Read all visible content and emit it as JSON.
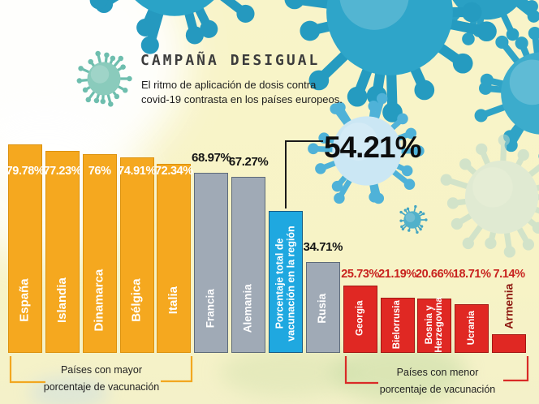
{
  "header": {
    "title": "CAMPAÑA DESIGUAL",
    "subtitle_line1": "El ritmo de aplicación de dosis contra",
    "subtitle_line2": "covid-19 contrasta en los países europeos."
  },
  "highlight": {
    "value": "54.21%"
  },
  "chart_data": {
    "type": "bar",
    "title": "CAMPAÑA DESIGUAL",
    "unit": "%",
    "ylim": [
      0,
      80
    ],
    "bars": [
      {
        "name": "España",
        "label": "79.78%",
        "value": 79.78,
        "group": "high"
      },
      {
        "name": "Islandia",
        "label": "77.23%",
        "value": 77.23,
        "group": "high"
      },
      {
        "name": "Dinamarca",
        "label": "76%",
        "value": 76.0,
        "group": "high"
      },
      {
        "name": "Bélgica",
        "label": "74.91%",
        "value": 74.91,
        "group": "high"
      },
      {
        "name": "Italia",
        "label": "72.34%",
        "value": 72.34,
        "group": "high"
      },
      {
        "name": "Francia",
        "label": "68.97%",
        "value": 68.97,
        "group": "mid"
      },
      {
        "name": "Alemania",
        "label": "67.27%",
        "value": 67.27,
        "group": "mid"
      },
      {
        "name": "Porcentaje total de\nvacunación en la región",
        "label": "54.21%",
        "value": 54.21,
        "group": "total"
      },
      {
        "name": "Rusia",
        "label": "34.71%",
        "value": 34.71,
        "group": "mid"
      },
      {
        "name": "Georgia",
        "label": "25.73%",
        "value": 25.73,
        "group": "low"
      },
      {
        "name": "Bielorrusia",
        "label": "21.19%",
        "value": 21.19,
        "group": "low"
      },
      {
        "name": "Bosnia y\nHerzegovina",
        "label": "20.66%",
        "value": 20.66,
        "group": "low"
      },
      {
        "name": "Ucrania",
        "label": "18.71%",
        "value": 18.71,
        "group": "low"
      },
      {
        "name": "Armenia",
        "label": "7.14%",
        "value": 7.14,
        "group": "low",
        "name_outside": true
      }
    ],
    "groups": {
      "high": {
        "color": "#F5A81F",
        "label_color": "#FFFFFF",
        "label_position": "inside"
      },
      "mid": {
        "color": "#A0AAB6",
        "label_color": "#141414",
        "label_position": "above"
      },
      "total": {
        "color": "#1FA8E0",
        "label_color": "#0D0D0D",
        "label_position": "callout"
      },
      "low": {
        "color": "#E02823",
        "label_color": "#C8221E",
        "label_position": "above"
      }
    }
  },
  "brackets": {
    "high": {
      "line1": "Países con mayor",
      "line2": "porcentaje de vacunación",
      "color": "#F2A71F"
    },
    "low": {
      "line1": "Países con menor",
      "line2": "porcentaje de vacunación",
      "color": "#D92B27"
    }
  },
  "decor": {
    "virus_icon": "coronavirus",
    "virus_color": "#2AA3C7",
    "ghost_virus_color": "#C8DFD8",
    "highlight_virus_color": "#CBE7F4",
    "background_color": "#F8F4C9"
  }
}
